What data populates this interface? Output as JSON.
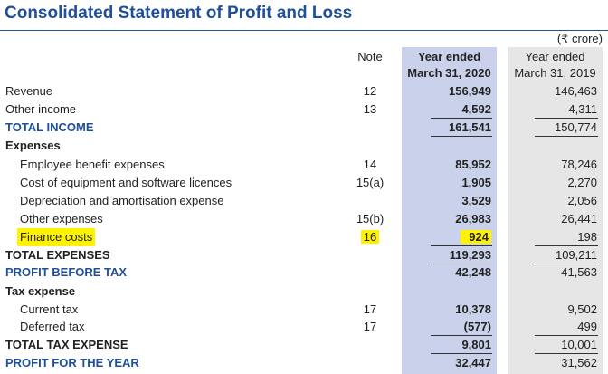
{
  "title": "Consolidated Statement of Profit and Loss",
  "unit": "(₹ crore)",
  "headers": {
    "note": "Note",
    "col2020_line1": "Year ended",
    "col2020_line2": "March 31, 2020",
    "col2019_line1": "Year ended",
    "col2019_line2": "March 31, 2019"
  },
  "rows": [
    {
      "label": "Revenue",
      "note": "12",
      "v2020": "156,949",
      "v2019": "146,463"
    },
    {
      "label": "Other income",
      "note": "13",
      "v2020": "4,592",
      "v2019": "4,311"
    },
    {
      "label": "TOTAL INCOME",
      "note": "",
      "v2020": "161,541",
      "v2019": "150,774"
    },
    {
      "label": "Expenses",
      "note": "",
      "v2020": "",
      "v2019": ""
    },
    {
      "label": "Employee benefit expenses",
      "note": "14",
      "v2020": "85,952",
      "v2019": "78,246"
    },
    {
      "label": "Cost of equipment and software licences",
      "note": "15(a)",
      "v2020": "1,905",
      "v2019": "2,270"
    },
    {
      "label": "Depreciation and amortisation expense",
      "note": "",
      "v2020": "3,529",
      "v2019": "2,056"
    },
    {
      "label": "Other expenses",
      "note": "15(b)",
      "v2020": "26,983",
      "v2019": "26,441"
    },
    {
      "label": "Finance costs",
      "note": "16",
      "v2020": "924",
      "v2019": "198"
    },
    {
      "label": "TOTAL EXPENSES",
      "note": "",
      "v2020": "119,293",
      "v2019": "109,211"
    },
    {
      "label": "PROFIT BEFORE TAX",
      "note": "",
      "v2020": "42,248",
      "v2019": "41,563"
    },
    {
      "label": "Tax expense",
      "note": "",
      "v2020": "",
      "v2019": ""
    },
    {
      "label": "Current tax",
      "note": "17",
      "v2020": "10,378",
      "v2019": "9,502"
    },
    {
      "label": "Deferred tax",
      "note": "17",
      "v2020": "(577)",
      "v2019": "499"
    },
    {
      "label": "TOTAL TAX EXPENSE",
      "note": "",
      "v2020": "9,801",
      "v2019": "10,001"
    },
    {
      "label": "PROFIT FOR THE YEAR",
      "note": "",
      "v2020": "32,447",
      "v2019": "31,562"
    }
  ],
  "colors": {
    "heading_blue": "#1f4e9a",
    "col2020_bg": "#c9d2ea",
    "col2019_bg": "#e6e6e6",
    "highlight": "#fff200"
  }
}
